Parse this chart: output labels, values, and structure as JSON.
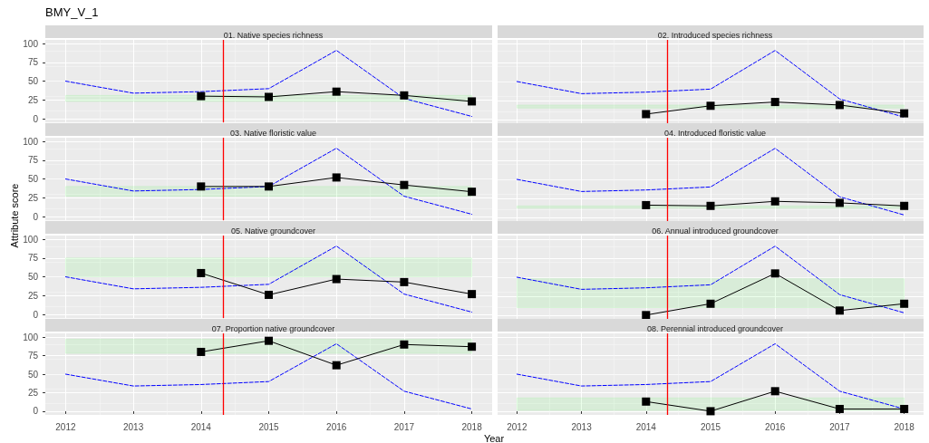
{
  "chart_data": [
    {
      "type": "line",
      "title": "01. Native species richness",
      "annotations": [
        "BMY_V_1"
      ],
      "xlim": [
        2011.7,
        2018.3
      ],
      "xticks": [
        2012,
        2013,
        2014,
        2015,
        2016,
        2017,
        2018
      ],
      "ylim": [
        -5,
        105
      ],
      "yticks": [
        0,
        25,
        50,
        75,
        100
      ],
      "grid": true,
      "tick_labels": "y",
      "series": [
        {
          "color": "#0000ff",
          "line_style": "dashed",
          "marker": "none",
          "x": [
            2012,
            2013,
            2014,
            2015,
            2016,
            2017,
            2018
          ],
          "values": [
            50,
            34,
            36,
            40,
            91,
            27,
            3
          ]
        },
        {
          "color": "#000000",
          "marker": "square",
          "x": [
            2014,
            2015,
            2016,
            2017,
            2018
          ],
          "values": [
            30,
            29,
            36,
            31,
            23
          ]
        }
      ],
      "bands": [
        {
          "axis": "y",
          "from": 23,
          "to": 31,
          "color": "#00ff00"
        }
      ],
      "ref_lines": [
        {
          "axis": "x",
          "value": 2014.33,
          "color": "#ff0000"
        }
      ]
    },
    {
      "type": "line",
      "title": "02. Introduced species richness",
      "xlim": [
        2011.7,
        2018.3
      ],
      "xticks": [
        2012,
        2013,
        2014,
        2015,
        2016,
        2017,
        2018
      ],
      "ylim": [
        -5,
        105
      ],
      "yticks": [
        0,
        25,
        50,
        75,
        100
      ],
      "grid": true,
      "tick_labels": false,
      "series": [
        {
          "color": "#0000ff",
          "line_style": "dashed",
          "marker": "none",
          "x": [
            2012,
            2013,
            2014,
            2015,
            2016,
            2017,
            2018
          ],
          "values": [
            50,
            34,
            36,
            40,
            91,
            27,
            3
          ]
        },
        {
          "color": "#000000",
          "marker": "square",
          "x": [
            2014,
            2015,
            2016,
            2017,
            2018
          ],
          "values": [
            7,
            18,
            23,
            19,
            8
          ]
        }
      ],
      "bands": [
        {
          "axis": "y",
          "from": 15,
          "to": 19,
          "color": "#00ff00"
        }
      ],
      "ref_lines": [
        {
          "axis": "x",
          "value": 2014.33,
          "color": "#ff0000"
        }
      ]
    },
    {
      "type": "line",
      "title": "03. Native floristic value",
      "xlim": [
        2011.7,
        2018.3
      ],
      "xticks": [
        2012,
        2013,
        2014,
        2015,
        2016,
        2017,
        2018
      ],
      "ylim": [
        -5,
        105
      ],
      "yticks": [
        0,
        25,
        50,
        75,
        100
      ],
      "grid": true,
      "tick_labels": "y",
      "series": [
        {
          "color": "#0000ff",
          "line_style": "dashed",
          "marker": "none",
          "x": [
            2012,
            2013,
            2014,
            2015,
            2016,
            2017,
            2018
          ],
          "values": [
            50,
            34,
            36,
            40,
            91,
            27,
            3
          ]
        },
        {
          "color": "#000000",
          "marker": "square",
          "x": [
            2014,
            2015,
            2016,
            2017,
            2018
          ],
          "values": [
            40,
            40,
            52,
            42,
            33
          ]
        }
      ],
      "bands": [
        {
          "axis": "y",
          "from": 27,
          "to": 40,
          "color": "#00ff00"
        }
      ],
      "ref_lines": [
        {
          "axis": "x",
          "value": 2014.33,
          "color": "#ff0000"
        }
      ]
    },
    {
      "type": "line",
      "title": "04. Introduced floristic value",
      "xlim": [
        2011.7,
        2018.3
      ],
      "xticks": [
        2012,
        2013,
        2014,
        2015,
        2016,
        2017,
        2018
      ],
      "ylim": [
        -5,
        105
      ],
      "yticks": [
        0,
        25,
        50,
        75,
        100
      ],
      "grid": true,
      "tick_labels": false,
      "series": [
        {
          "color": "#0000ff",
          "line_style": "dashed",
          "marker": "none",
          "x": [
            2012,
            2013,
            2014,
            2015,
            2016,
            2017,
            2018
          ],
          "values": [
            50,
            34,
            36,
            40,
            91,
            27,
            3
          ]
        },
        {
          "color": "#000000",
          "marker": "square",
          "x": [
            2014,
            2015,
            2016,
            2017,
            2018
          ],
          "values": [
            16,
            15,
            21,
            19,
            15
          ]
        }
      ],
      "bands": [
        {
          "axis": "y",
          "from": 12,
          "to": 15,
          "color": "#00ff00"
        }
      ],
      "ref_lines": [
        {
          "axis": "x",
          "value": 2014.33,
          "color": "#ff0000"
        }
      ]
    },
    {
      "type": "line",
      "title": "05. Native groundcover",
      "ylabel": "Attribute score",
      "xlim": [
        2011.7,
        2018.3
      ],
      "xticks": [
        2012,
        2013,
        2014,
        2015,
        2016,
        2017,
        2018
      ],
      "ylim": [
        -5,
        105
      ],
      "yticks": [
        0,
        25,
        50,
        75,
        100
      ],
      "grid": true,
      "tick_labels": "y",
      "series": [
        {
          "color": "#0000ff",
          "line_style": "dashed",
          "marker": "none",
          "x": [
            2012,
            2013,
            2014,
            2015,
            2016,
            2017,
            2018
          ],
          "values": [
            50,
            34,
            36,
            40,
            91,
            27,
            3
          ]
        },
        {
          "color": "#000000",
          "marker": "square",
          "x": [
            2014,
            2015,
            2016,
            2017,
            2018
          ],
          "values": [
            55,
            26,
            47,
            43,
            27
          ]
        }
      ],
      "bands": [
        {
          "axis": "y",
          "from": 50,
          "to": 75,
          "color": "#00ff00"
        }
      ],
      "ref_lines": [
        {
          "axis": "x",
          "value": 2014.33,
          "color": "#ff0000"
        }
      ]
    },
    {
      "type": "line",
      "title": "06. Annual introduced groundcover",
      "xlim": [
        2011.7,
        2018.3
      ],
      "xticks": [
        2012,
        2013,
        2014,
        2015,
        2016,
        2017,
        2018
      ],
      "ylim": [
        -5,
        105
      ],
      "yticks": [
        0,
        25,
        50,
        75,
        100
      ],
      "grid": true,
      "tick_labels": false,
      "series": [
        {
          "color": "#0000ff",
          "line_style": "dashed",
          "marker": "none",
          "x": [
            2012,
            2013,
            2014,
            2015,
            2016,
            2017,
            2018
          ],
          "values": [
            50,
            34,
            36,
            40,
            91,
            27,
            3
          ]
        },
        {
          "color": "#000000",
          "marker": "square",
          "x": [
            2014,
            2015,
            2016,
            2017,
            2018
          ],
          "values": [
            0,
            15,
            55,
            6,
            15
          ]
        }
      ],
      "bands": [
        {
          "axis": "y",
          "from": 10,
          "to": 48,
          "color": "#00ff00"
        }
      ],
      "ref_lines": [
        {
          "axis": "x",
          "value": 2014.33,
          "color": "#ff0000"
        }
      ]
    },
    {
      "type": "line",
      "title": "07. Proportion native groundcover",
      "xlabel": "Year",
      "xlim": [
        2011.7,
        2018.3
      ],
      "xticks": [
        2012,
        2013,
        2014,
        2015,
        2016,
        2017,
        2018
      ],
      "ylim": [
        -5,
        105
      ],
      "yticks": [
        0,
        25,
        50,
        75,
        100
      ],
      "grid": true,
      "series": [
        {
          "color": "#0000ff",
          "line_style": "dashed",
          "marker": "none",
          "x": [
            2012,
            2013,
            2014,
            2015,
            2016,
            2017,
            2018
          ],
          "values": [
            50,
            34,
            36,
            40,
            91,
            27,
            3
          ]
        },
        {
          "color": "#000000",
          "marker": "square",
          "x": [
            2014,
            2015,
            2016,
            2017,
            2018
          ],
          "values": [
            80,
            95,
            62,
            90,
            87
          ]
        }
      ],
      "bands": [
        {
          "axis": "y",
          "from": 78,
          "to": 97,
          "color": "#00ff00"
        }
      ],
      "ref_lines": [
        {
          "axis": "x",
          "value": 2014.33,
          "color": "#ff0000"
        }
      ]
    },
    {
      "type": "line",
      "title": "08. Perennial introduced groundcover",
      "xlim": [
        2011.7,
        2018.3
      ],
      "xticks": [
        2012,
        2013,
        2014,
        2015,
        2016,
        2017,
        2018
      ],
      "ylim": [
        -5,
        105
      ],
      "yticks": [
        0,
        25,
        50,
        75,
        100
      ],
      "grid": true,
      "tick_labels": "x",
      "series": [
        {
          "color": "#0000ff",
          "line_style": "dashed",
          "marker": "none",
          "x": [
            2012,
            2013,
            2014,
            2015,
            2016,
            2017,
            2018
          ],
          "values": [
            50,
            34,
            36,
            40,
            91,
            27,
            3
          ]
        },
        {
          "color": "#000000",
          "marker": "square",
          "x": [
            2014,
            2015,
            2016,
            2017,
            2018
          ],
          "values": [
            13,
            0,
            27,
            3,
            3
          ]
        }
      ],
      "bands": [
        {
          "axis": "y",
          "from": 1,
          "to": 18,
          "color": "#00ff00"
        }
      ],
      "ref_lines": [
        {
          "axis": "x",
          "value": 2014.33,
          "color": "#ff0000"
        }
      ]
    }
  ]
}
